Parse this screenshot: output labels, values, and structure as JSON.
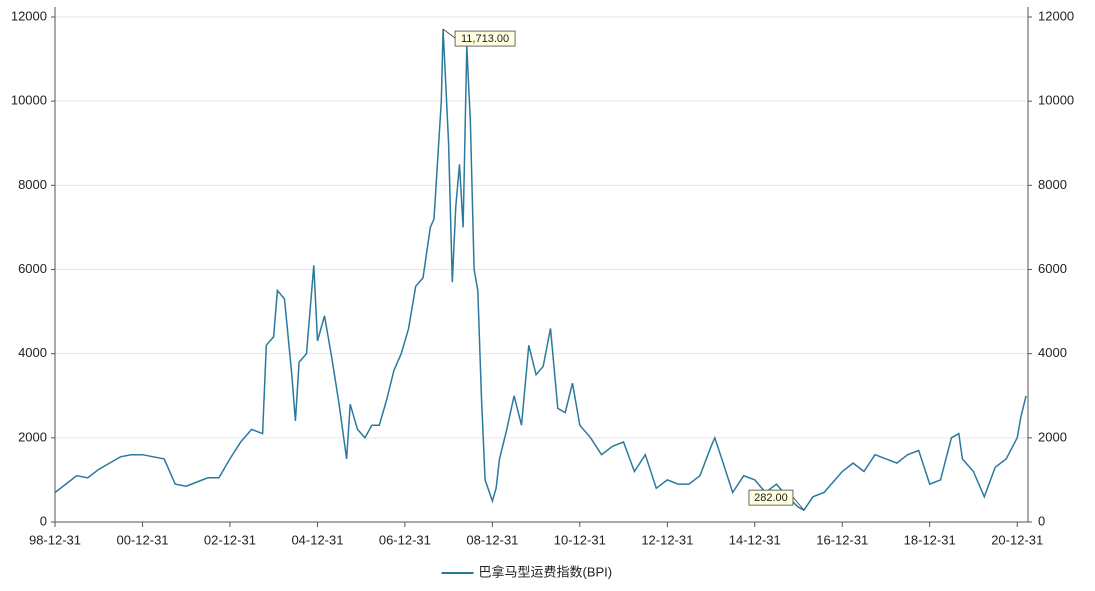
{
  "chart_data": {
    "type": "line",
    "x": [
      "98-12-31",
      "99-03-31",
      "99-06-30",
      "99-09-30",
      "99-12-31",
      "00-03-31",
      "00-06-30",
      "00-09-30",
      "00-12-31",
      "01-03-31",
      "01-06-30",
      "01-09-30",
      "01-12-31",
      "02-03-31",
      "02-06-30",
      "02-09-30",
      "02-12-31",
      "03-03-31",
      "03-06-30",
      "03-09-30",
      "03-10-31",
      "03-12-31",
      "04-01-31",
      "04-03-31",
      "04-05-31",
      "04-06-30",
      "04-07-31",
      "04-09-30",
      "04-11-30",
      "04-12-31",
      "05-02-28",
      "05-04-30",
      "05-06-30",
      "05-08-31",
      "05-09-30",
      "05-11-30",
      "06-01-31",
      "06-03-31",
      "06-05-31",
      "06-07-31",
      "06-09-30",
      "06-11-30",
      "07-01-31",
      "07-03-31",
      "07-05-31",
      "07-07-31",
      "07-08-31",
      "07-10-31",
      "07-11-15",
      "07-12-31",
      "08-01-31",
      "08-02-29",
      "08-03-31",
      "08-04-30",
      "08-05-31",
      "08-06-30",
      "08-07-31",
      "08-08-31",
      "08-09-30",
      "08-10-31",
      "08-12-31",
      "09-01-31",
      "09-02-28",
      "09-04-30",
      "09-06-30",
      "09-08-31",
      "09-10-31",
      "09-12-31",
      "10-02-28",
      "10-04-30",
      "10-06-30",
      "10-08-31",
      "10-10-31",
      "10-12-31",
      "11-03-31",
      "11-06-30",
      "11-09-30",
      "11-12-31",
      "12-03-31",
      "12-06-30",
      "12-09-30",
      "12-12-31",
      "13-03-31",
      "13-06-30",
      "13-09-30",
      "13-12-31",
      "14-01-31",
      "14-03-31",
      "14-06-30",
      "14-09-30",
      "14-12-31",
      "15-03-31",
      "15-06-30",
      "15-09-30",
      "15-12-31",
      "16-02-15",
      "16-04-30",
      "16-07-31",
      "16-09-30",
      "16-12-31",
      "17-03-31",
      "17-06-30",
      "17-09-30",
      "17-12-31",
      "18-03-31",
      "18-06-30",
      "18-09-30",
      "18-12-31",
      "19-03-31",
      "19-06-30",
      "19-08-31",
      "19-09-30",
      "19-12-31",
      "20-03-31",
      "20-06-30",
      "20-09-30",
      "20-12-31",
      "21-01-31",
      "21-03-15"
    ],
    "series": [
      {
        "name": "巴拿马型运费指数(BPI)",
        "color": "#2b7a9e",
        "values": [
          700,
          900,
          1100,
          1050,
          1250,
          1400,
          1550,
          1600,
          1600,
          1550,
          1500,
          900,
          850,
          950,
          1050,
          1050,
          1500,
          1900,
          2200,
          2100,
          4200,
          4400,
          5500,
          5300,
          3500,
          2400,
          3800,
          4000,
          6100,
          4300,
          4900,
          3900,
          2800,
          1500,
          2800,
          2200,
          2000,
          2300,
          2300,
          2900,
          3600,
          4000,
          4600,
          5600,
          5800,
          7000,
          7200,
          10000,
          11713,
          9000,
          5700,
          7500,
          8500,
          7000,
          11300,
          9500,
          6000,
          5500,
          3000,
          1000,
          500,
          800,
          1500,
          2200,
          3000,
          2300,
          4200,
          3500,
          3700,
          4600,
          2700,
          2600,
          3300,
          2300,
          2000,
          1600,
          1800,
          1900,
          1200,
          1600,
          800,
          1000,
          900,
          900,
          1100,
          1800,
          2000,
          1500,
          700,
          1100,
          1000,
          700,
          900,
          600,
          350,
          282,
          600,
          700,
          900,
          1200,
          1400,
          1200,
          1600,
          1500,
          1400,
          1600,
          1700,
          900,
          1000,
          2000,
          2100,
          1500,
          1200,
          600,
          1300,
          1500,
          2000,
          2500,
          3000
        ]
      }
    ],
    "xlim": [
      "98-12-31",
      "21-03-31"
    ],
    "xticks": [
      "98-12-31",
      "00-12-31",
      "02-12-31",
      "04-12-31",
      "06-12-31",
      "08-12-31",
      "10-12-31",
      "12-12-31",
      "14-12-31",
      "16-12-31",
      "18-12-31",
      "20-12-31"
    ],
    "ylim": [
      0,
      12000
    ],
    "yticks": [
      0,
      2000,
      4000,
      6000,
      8000,
      10000,
      12000
    ],
    "y2lim": [
      0,
      12000
    ],
    "y2ticks": [
      0,
      2000,
      4000,
      6000,
      8000,
      10000,
      12000
    ],
    "grid": true,
    "legend": "bottom",
    "annotations": [
      {
        "x": "07-11-15",
        "value": 11713,
        "label": "11,713.00"
      },
      {
        "x": "16-02-15",
        "value": 282,
        "label": "282.00"
      }
    ]
  }
}
